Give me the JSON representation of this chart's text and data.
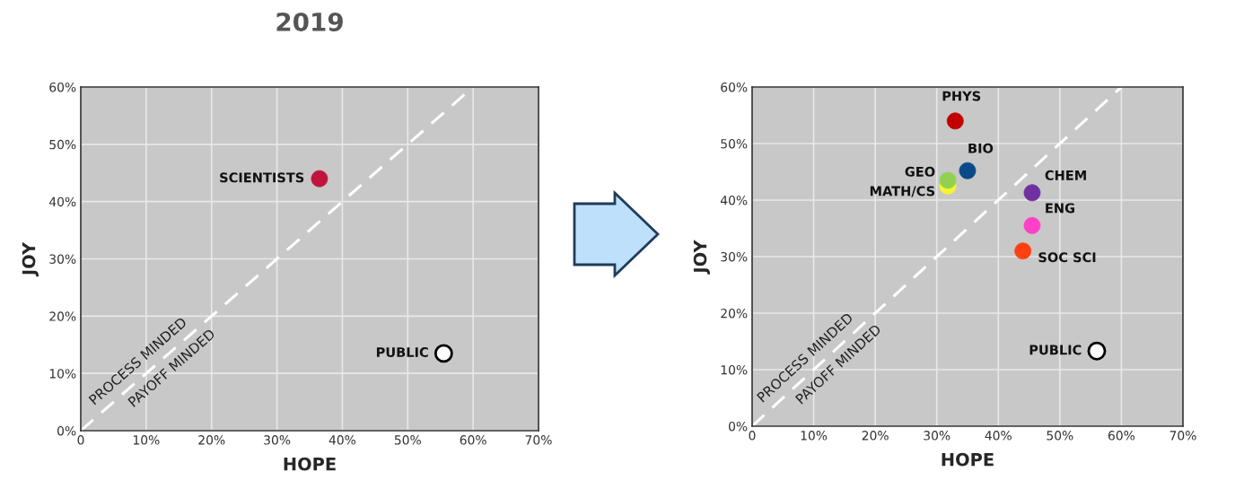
{
  "chart_data": [
    {
      "type": "scatter",
      "title": "2019",
      "xlabel": "HOPE",
      "ylabel": "JOY",
      "xlim": [
        0,
        70
      ],
      "ylim": [
        0,
        60
      ],
      "xticks": [
        {
          "value": 0,
          "label": "0"
        },
        {
          "value": 10,
          "label": "10%"
        },
        {
          "value": 20,
          "label": "20%"
        },
        {
          "value": 30,
          "label": "30%"
        },
        {
          "value": 40,
          "label": "40%"
        },
        {
          "value": 50,
          "label": "50%"
        },
        {
          "value": 60,
          "label": "60%"
        },
        {
          "value": 70,
          "label": "70%"
        }
      ],
      "yticks": [
        {
          "value": 0,
          "label": "0%"
        },
        {
          "value": 10,
          "label": "10%"
        },
        {
          "value": 20,
          "label": "20%"
        },
        {
          "value": 30,
          "label": "30%"
        },
        {
          "value": 40,
          "label": "40%"
        },
        {
          "value": 50,
          "label": "50%"
        },
        {
          "value": 60,
          "label": "60%"
        }
      ],
      "grid": true,
      "marker": "circle",
      "series": [
        {
          "type": "line",
          "marker": "none",
          "color": "#ffffff",
          "line_style": "dashed",
          "x": [
            0,
            60
          ],
          "values": [
            0,
            60
          ]
        },
        {
          "name": "SCIENTISTS",
          "color": "#c0143c",
          "x": [
            36.5
          ],
          "values": [
            44
          ]
        },
        {
          "name": "PUBLIC",
          "color": "#ffffff",
          "x": [
            55.5
          ],
          "values": [
            13.5
          ]
        }
      ],
      "annotations": [
        "PROCESS MINDED",
        "PAYOFF MINDED"
      ]
    },
    {
      "type": "scatter",
      "xlabel": "HOPE",
      "ylabel": "JOY",
      "xlim": [
        0,
        70
      ],
      "ylim": [
        0,
        60
      ],
      "xticks": [
        {
          "value": 0,
          "label": "0"
        },
        {
          "value": 10,
          "label": "10%"
        },
        {
          "value": 20,
          "label": "20%"
        },
        {
          "value": 30,
          "label": "30%"
        },
        {
          "value": 40,
          "label": "40%"
        },
        {
          "value": 50,
          "label": "50%"
        },
        {
          "value": 60,
          "label": "60%"
        },
        {
          "value": 70,
          "label": "70%"
        }
      ],
      "yticks": [
        {
          "value": 0,
          "label": "0%"
        },
        {
          "value": 10,
          "label": "10%"
        },
        {
          "value": 20,
          "label": "20%"
        },
        {
          "value": 30,
          "label": "30%"
        },
        {
          "value": 40,
          "label": "40%"
        },
        {
          "value": 50,
          "label": "50%"
        },
        {
          "value": 60,
          "label": "60%"
        }
      ],
      "grid": true,
      "marker": "circle",
      "series": [
        {
          "type": "line",
          "marker": "none",
          "color": "#ffffff",
          "line_style": "dashed",
          "x": [
            0,
            60
          ],
          "values": [
            0,
            60
          ]
        },
        {
          "name": "PHYS",
          "color": "#c00000",
          "x": [
            33
          ],
          "values": [
            54
          ]
        },
        {
          "name": "BIO",
          "color": "#0a4a8a",
          "x": [
            35
          ],
          "values": [
            45.2
          ]
        },
        {
          "name": "GEO",
          "color": "#92d050",
          "x": [
            31.8
          ],
          "values": [
            43.5
          ]
        },
        {
          "name": "MATH/CS",
          "color": "#f5f532",
          "x": [
            31.8
          ],
          "values": [
            42.5
          ]
        },
        {
          "name": "CHEM",
          "color": "#7030a0",
          "x": [
            45.5
          ],
          "values": [
            41.3
          ]
        },
        {
          "name": "ENG",
          "color": "#ff40c8",
          "x": [
            45.5
          ],
          "values": [
            35.5
          ]
        },
        {
          "name": "SOC SCI",
          "color": "#ff4010",
          "x": [
            44
          ],
          "values": [
            31
          ]
        },
        {
          "name": "PUBLIC",
          "color": "#ffffff",
          "x": [
            56
          ],
          "values": [
            13.3
          ]
        }
      ],
      "annotations": [
        "PROCESS MINDED",
        "PAYOFF MINDED"
      ]
    }
  ]
}
